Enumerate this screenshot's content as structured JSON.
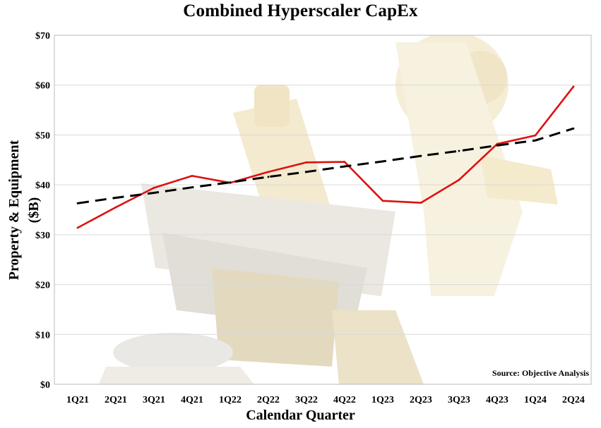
{
  "chart_data": {
    "type": "line",
    "title": "Combined Hyperscaler CapEx",
    "xlabel": "Calendar Quarter",
    "ylabel": "Property & Equipment ($B)",
    "categories": [
      "1Q21",
      "2Q21",
      "3Q21",
      "4Q21",
      "1Q22",
      "2Q22",
      "3Q22",
      "4Q22",
      "1Q23",
      "2Q23",
      "3Q23",
      "4Q23",
      "1Q24",
      "2Q24"
    ],
    "y_ticks": [
      "$0",
      "$10",
      "$20",
      "$30",
      "$40",
      "$50",
      "$60",
      "$70"
    ],
    "ylim": [
      0,
      70
    ],
    "grid": true,
    "series": [
      {
        "values": [
          31.4,
          35.5,
          39.4,
          41.8,
          40.4,
          42.6,
          44.5,
          44.6,
          36.8,
          36.4,
          41.0,
          48.2,
          49.9,
          59.7
        ]
      },
      {
        "type": "trend",
        "values": [
          36.3,
          37.4,
          38.4,
          39.5,
          40.5,
          41.6,
          42.6,
          43.7,
          44.7,
          45.8,
          46.8,
          47.9,
          48.9,
          51.3
        ]
      }
    ],
    "annotation": "Source: Objective Analysis",
    "colors": {
      "series_line": "#dd1111",
      "trend_line": "#000000",
      "grid": "#d9d9d9",
      "background_tint": "#f3ead2"
    }
  }
}
